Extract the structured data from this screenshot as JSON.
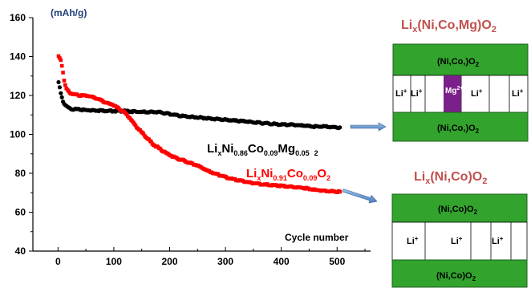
{
  "chart_data": {
    "type": "scatter",
    "xlabel": "Cycle number",
    "ylabel": "(mAh/g)",
    "xlim": [
      -45,
      560
    ],
    "ylim": [
      40,
      160
    ],
    "xticks": [
      0,
      100,
      200,
      300,
      400,
      500
    ],
    "yticks": [
      40,
      60,
      80,
      100,
      120,
      140,
      160
    ],
    "grid": false,
    "series": [
      {
        "name": "LixNi0.86Co0.09Mg0.05O2",
        "color": "#000000",
        "points": [
          [
            1,
            126.5
          ],
          [
            3,
            124
          ],
          [
            5,
            121
          ],
          [
            8,
            118
          ],
          [
            10,
            116
          ],
          [
            15,
            114.5
          ],
          [
            20,
            113.5
          ],
          [
            25,
            113
          ],
          [
            30,
            113
          ],
          [
            40,
            112.7
          ],
          [
            50,
            112.5
          ],
          [
            60,
            112.5
          ],
          [
            80,
            112.2
          ],
          [
            100,
            112
          ],
          [
            120,
            112
          ],
          [
            150,
            111.5
          ],
          [
            180,
            111.5
          ],
          [
            200,
            110.5
          ],
          [
            220,
            109.5
          ],
          [
            240,
            109
          ],
          [
            260,
            108.5
          ],
          [
            280,
            108
          ],
          [
            300,
            107.5
          ],
          [
            320,
            107
          ],
          [
            340,
            106.5
          ],
          [
            360,
            106
          ],
          [
            380,
            105.5
          ],
          [
            400,
            105
          ],
          [
            420,
            105
          ],
          [
            440,
            104.5
          ],
          [
            460,
            104
          ],
          [
            480,
            104
          ],
          [
            500,
            103.5
          ],
          [
            505,
            103.5
          ]
        ]
      },
      {
        "name": "LixNi0.91Co0.09O2",
        "color": "#ff0000",
        "points": [
          [
            1,
            140
          ],
          [
            3,
            139
          ],
          [
            5,
            138
          ],
          [
            8,
            134
          ],
          [
            10,
            130
          ],
          [
            12,
            126
          ],
          [
            15,
            123.5
          ],
          [
            20,
            121.5
          ],
          [
            25,
            121
          ],
          [
            30,
            120.5
          ],
          [
            40,
            120
          ],
          [
            50,
            120
          ],
          [
            60,
            119.5
          ],
          [
            70,
            118.5
          ],
          [
            80,
            117
          ],
          [
            90,
            116
          ],
          [
            100,
            115
          ],
          [
            110,
            113
          ],
          [
            120,
            111
          ],
          [
            130,
            108
          ],
          [
            140,
            104
          ],
          [
            150,
            101
          ],
          [
            160,
            98
          ],
          [
            170,
            95
          ],
          [
            180,
            93
          ],
          [
            190,
            91
          ],
          [
            200,
            89.5
          ],
          [
            210,
            88
          ],
          [
            220,
            87
          ],
          [
            230,
            86
          ],
          [
            240,
            85
          ],
          [
            250,
            84
          ],
          [
            260,
            82.5
          ],
          [
            270,
            81
          ],
          [
            280,
            80
          ],
          [
            290,
            79
          ],
          [
            300,
            78
          ],
          [
            320,
            76.5
          ],
          [
            340,
            75.5
          ],
          [
            360,
            74.5
          ],
          [
            380,
            74
          ],
          [
            400,
            73.5
          ],
          [
            420,
            73
          ],
          [
            440,
            72.5
          ],
          [
            460,
            71.5
          ],
          [
            480,
            71
          ],
          [
            500,
            70.5
          ],
          [
            505,
            70.5
          ]
        ]
      }
    ],
    "labels": {
      "black": {
        "main": [
          "Li",
          "Ni",
          "Co",
          "Mg"
        ],
        "subs": [
          "x",
          "0.86",
          "0.09",
          "0.05",
          "2"
        ]
      },
      "red": {
        "main": [
          "Li",
          "Ni",
          "Co",
          "O"
        ],
        "subs": [
          "x",
          "0.91",
          "0.09",
          "2"
        ]
      }
    }
  },
  "schematic": {
    "top": {
      "title_prefix": "Li",
      "title_sub": "x",
      "title_suffix": "(Ni,Co,Mg)O",
      "title_end_sub": "2",
      "slab_text": "(Ni,Co,)O",
      "slab_sub": "2",
      "ions": [
        "Li",
        "Li",
        "Li",
        "Li"
      ],
      "ion_sup": "+",
      "mg_label": "Mg",
      "mg_sup": "2+",
      "slab_color": "#32a32d",
      "mg_color": "#7b1f8a"
    },
    "bottom": {
      "title_prefix": "Li",
      "title_sub": "x",
      "title_suffix": "(Ni,Co)O",
      "title_end_sub": "2",
      "slab_text": "(Ni,Co)O",
      "slab_sub": "2",
      "ions": [
        "Li",
        "Li",
        "Li"
      ],
      "ion_sup": "+",
      "slab_color": "#32a32d"
    }
  }
}
